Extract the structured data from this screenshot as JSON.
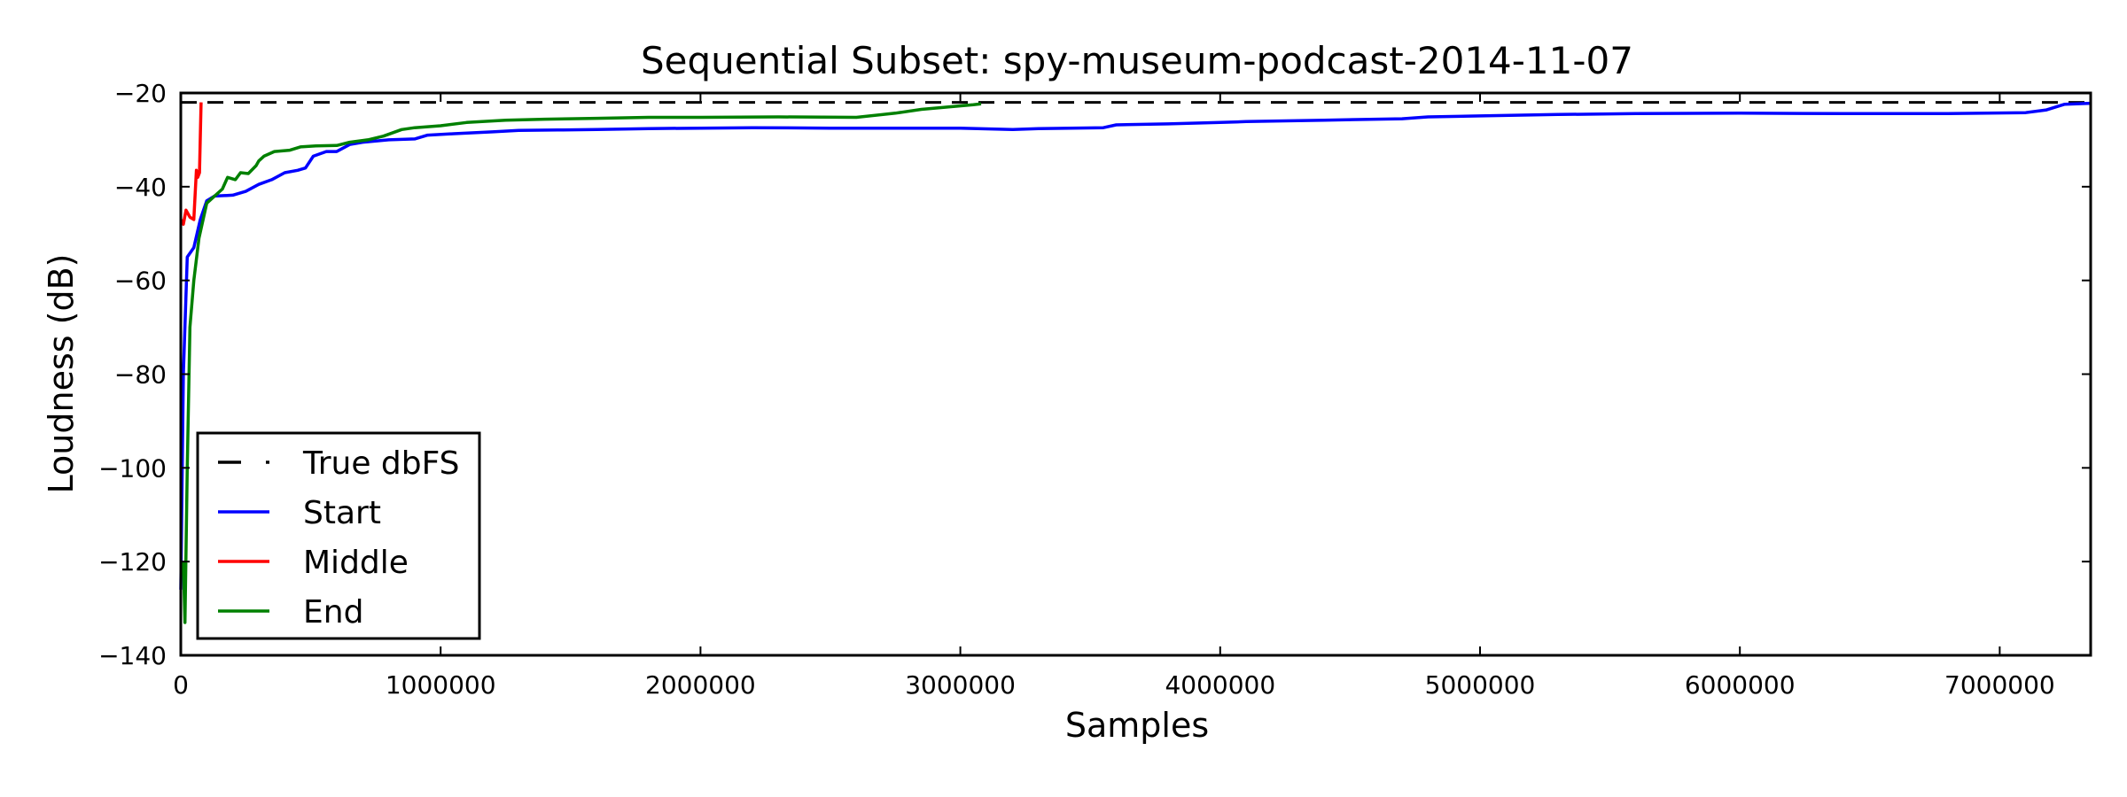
{
  "chart_data": {
    "type": "line",
    "title": "Sequential Subset: spy-museum-podcast-2014-11-07",
    "xlabel": "Samples",
    "ylabel": "Loudness (dB)",
    "xlim": [
      0,
      7350000
    ],
    "ylim": [
      -140,
      -20
    ],
    "xticks": [
      0,
      1000000,
      2000000,
      3000000,
      4000000,
      5000000,
      6000000,
      7000000
    ],
    "xtick_labels": [
      "0",
      "1000000",
      "2000000",
      "3000000",
      "4000000",
      "5000000",
      "6000000",
      "7000000"
    ],
    "yticks": [
      -20,
      -40,
      -60,
      -80,
      -100,
      -120,
      -140
    ],
    "ytick_labels": [
      "−20",
      "−40",
      "−60",
      "−80",
      "−100",
      "−120",
      "−140"
    ],
    "grid": false,
    "legend_position": "lower-left",
    "reference_line": {
      "name": "True dbFS",
      "value": -22,
      "color": "#000000",
      "style": "dashed"
    },
    "series": [
      {
        "name": "Start",
        "color": "#0000ff",
        "points": [
          [
            0,
            -126
          ],
          [
            10000,
            -80
          ],
          [
            25000,
            -55
          ],
          [
            50000,
            -53
          ],
          [
            75000,
            -47
          ],
          [
            100000,
            -43
          ],
          [
            130000,
            -42
          ],
          [
            200000,
            -41.8
          ],
          [
            250000,
            -41
          ],
          [
            300000,
            -39.5
          ],
          [
            350000,
            -38.5
          ],
          [
            400000,
            -37
          ],
          [
            450000,
            -36.5
          ],
          [
            480000,
            -36
          ],
          [
            510000,
            -33.5
          ],
          [
            560000,
            -32.5
          ],
          [
            600000,
            -32.5
          ],
          [
            650000,
            -31
          ],
          [
            700000,
            -30.5
          ],
          [
            800000,
            -30
          ],
          [
            900000,
            -29.8
          ],
          [
            950000,
            -29
          ],
          [
            1050000,
            -28.7
          ],
          [
            1200000,
            -28.3
          ],
          [
            1300000,
            -28
          ],
          [
            1450000,
            -27.9
          ],
          [
            1600000,
            -27.8
          ],
          [
            1800000,
            -27.6
          ],
          [
            2000000,
            -27.5
          ],
          [
            2200000,
            -27.4
          ],
          [
            2500000,
            -27.5
          ],
          [
            2800000,
            -27.5
          ],
          [
            3000000,
            -27.5
          ],
          [
            3200000,
            -27.8
          ],
          [
            3300000,
            -27.6
          ],
          [
            3550000,
            -27.4
          ],
          [
            3600000,
            -26.8
          ],
          [
            3800000,
            -26.6
          ],
          [
            4000000,
            -26.3
          ],
          [
            4100000,
            -26.1
          ],
          [
            4400000,
            -25.8
          ],
          [
            4700000,
            -25.5
          ],
          [
            4800000,
            -25.1
          ],
          [
            5000000,
            -24.9
          ],
          [
            5300000,
            -24.6
          ],
          [
            5600000,
            -24.4
          ],
          [
            6000000,
            -24.3
          ],
          [
            6400000,
            -24.4
          ],
          [
            6800000,
            -24.4
          ],
          [
            7100000,
            -24.2
          ],
          [
            7180000,
            -23.6
          ],
          [
            7250000,
            -22.4
          ],
          [
            7350000,
            -22.2
          ]
        ]
      },
      {
        "name": "Middle",
        "color": "#ff0000",
        "points": [
          [
            0,
            -47
          ],
          [
            10000,
            -48
          ],
          [
            20000,
            -45
          ],
          [
            35000,
            -46.5
          ],
          [
            50000,
            -47
          ],
          [
            60000,
            -36.5
          ],
          [
            65000,
            -38
          ],
          [
            72000,
            -37
          ],
          [
            78000,
            -22
          ]
        ]
      },
      {
        "name": "End",
        "color": "#008000",
        "points": [
          [
            10000,
            -120
          ],
          [
            16000,
            -133
          ],
          [
            25000,
            -100
          ],
          [
            35000,
            -70
          ],
          [
            50000,
            -60
          ],
          [
            70000,
            -51
          ],
          [
            100000,
            -43.5
          ],
          [
            130000,
            -42
          ],
          [
            160000,
            -40.5
          ],
          [
            180000,
            -38
          ],
          [
            210000,
            -38.5
          ],
          [
            230000,
            -37
          ],
          [
            260000,
            -37.2
          ],
          [
            290000,
            -35.5
          ],
          [
            300000,
            -34.5
          ],
          [
            320000,
            -33.5
          ],
          [
            360000,
            -32.5
          ],
          [
            420000,
            -32.2
          ],
          [
            460000,
            -31.5
          ],
          [
            520000,
            -31.3
          ],
          [
            600000,
            -31.2
          ],
          [
            650000,
            -30.5
          ],
          [
            720000,
            -30
          ],
          [
            780000,
            -29.2
          ],
          [
            850000,
            -27.8
          ],
          [
            900000,
            -27.4
          ],
          [
            1000000,
            -27
          ],
          [
            1100000,
            -26.3
          ],
          [
            1250000,
            -25.8
          ],
          [
            1400000,
            -25.6
          ],
          [
            1600000,
            -25.4
          ],
          [
            1800000,
            -25.2
          ],
          [
            2000000,
            -25.2
          ],
          [
            2300000,
            -25.1
          ],
          [
            2600000,
            -25.2
          ],
          [
            2750000,
            -24.3
          ],
          [
            2850000,
            -23.5
          ],
          [
            2950000,
            -23
          ],
          [
            3050000,
            -22.5
          ],
          [
            3080000,
            -22.3
          ]
        ]
      }
    ]
  }
}
